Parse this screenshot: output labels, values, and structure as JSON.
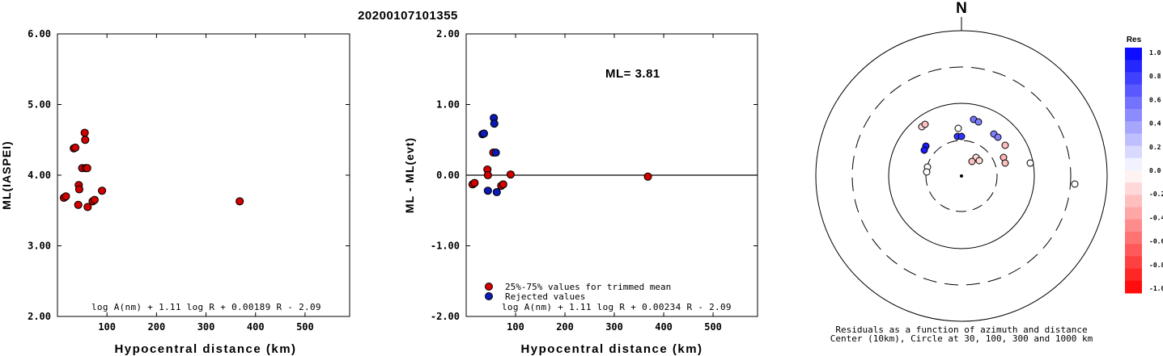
{
  "page": {
    "event_id": "20200107101355"
  },
  "chart_data": [
    {
      "type": "scatter",
      "id": "panel1",
      "ylabel": "ML(IASPEI)",
      "xlabel": "Hypocentral distance (km)",
      "xlim": [
        0,
        590
      ],
      "ylim": [
        2.0,
        6.0
      ],
      "x_ticks": [
        100,
        200,
        300,
        400,
        500
      ],
      "y_ticks": [
        2.0,
        3.0,
        4.0,
        5.0,
        6.0
      ],
      "y_tick_labels": [
        "2.00",
        "3.00",
        "4.00",
        "5.00",
        "6.00"
      ],
      "formula": "log A(nm) + 1.11 log R + 0.00189 R - 2.09",
      "series": [
        {
          "color": "#d40000",
          "points": [
            [
              13,
              3.68
            ],
            [
              17,
              3.7
            ],
            [
              33,
              4.38
            ],
            [
              36,
              4.39
            ],
            [
              42,
              3.58
            ],
            [
              43,
              3.86
            ],
            [
              44,
              3.8
            ],
            [
              50,
              4.1
            ],
            [
              55,
              4.6
            ],
            [
              56,
              4.5
            ],
            [
              57,
              4.1
            ],
            [
              60,
              4.1
            ],
            [
              61,
              3.55
            ],
            [
              71,
              3.63
            ],
            [
              75,
              3.65
            ],
            [
              90,
              3.78
            ],
            [
              368,
              3.63
            ]
          ]
        }
      ]
    },
    {
      "type": "scatter",
      "id": "panel2",
      "ylabel": "ML - ML(evt)",
      "xlabel": "Hypocentral distance (km)",
      "xlim": [
        0,
        590
      ],
      "ylim": [
        -2.0,
        2.0
      ],
      "x_ticks": [
        100,
        200,
        300,
        400,
        500
      ],
      "y_ticks": [
        -2.0,
        -1.0,
        0.0,
        1.0,
        2.0
      ],
      "y_tick_labels": [
        "-2.00",
        "-1.00",
        "0.00",
        "1.00",
        "2.00"
      ],
      "annotation": "ML= 3.81",
      "formula": "log A(nm) + 1.11 log R + 0.00234 R - 2.09",
      "legend": [
        {
          "label": "25%-75% values for trimmed mean",
          "color": "#d40000"
        },
        {
          "label": "Rejected values",
          "color": "#0a1ab8"
        }
      ],
      "series": [
        {
          "name": "25%-75% values for trimmed mean",
          "color": "#d40000",
          "points": [
            [
              13,
              -0.13
            ],
            [
              17,
              -0.11
            ],
            [
              43,
              0.08
            ],
            [
              44,
              0.0
            ],
            [
              55,
              0.32
            ],
            [
              71,
              -0.15
            ],
            [
              75,
              -0.13
            ],
            [
              90,
              0.01
            ],
            [
              368,
              -0.02
            ]
          ]
        },
        {
          "name": "Rejected values",
          "color": "#0a1ab8",
          "points": [
            [
              33,
              0.58
            ],
            [
              36,
              0.59
            ],
            [
              44,
              -0.22
            ],
            [
              56,
              0.81
            ],
            [
              57,
              0.73
            ],
            [
              60,
              0.32
            ],
            [
              62,
              -0.24
            ]
          ]
        }
      ]
    },
    {
      "type": "scatter",
      "id": "polar",
      "north_label": "N",
      "caption_line1": "Residuals as a function of azimuth and distance",
      "caption_line2": "Center (10km), Circle at 30, 100, 300 and 1000 km",
      "colorbar_title": "Res",
      "colorbar_ticks": [
        "1.0",
        "0.8",
        "0.6",
        "0.4",
        "0.2",
        "0.0",
        "-0.2",
        "-0.4",
        "-0.6",
        "-0.8",
        "-1.0"
      ],
      "stations": [
        {
          "dx": -49,
          "dy": -61,
          "res": -0.15
        },
        {
          "dx": -45,
          "dy": -64,
          "res": -0.25
        },
        {
          "dx": -4,
          "dy": -59,
          "res": 0.0
        },
        {
          "dx": 15,
          "dy": -70,
          "res": 0.55
        },
        {
          "dx": 21,
          "dy": -67,
          "res": 0.5
        },
        {
          "dx": -5,
          "dy": -49,
          "res": 0.8
        },
        {
          "dx": 0,
          "dy": -49,
          "res": 0.8
        },
        {
          "dx": 40,
          "dy": -52,
          "res": 0.5
        },
        {
          "dx": 45,
          "dy": -48,
          "res": 0.5
        },
        {
          "dx": 54,
          "dy": -38,
          "res": -0.25
        },
        {
          "dx": -44,
          "dy": -37,
          "res": 0.9
        },
        {
          "dx": -46,
          "dy": -32,
          "res": 0.9
        },
        {
          "dx": 18,
          "dy": -23,
          "res": -0.15
        },
        {
          "dx": 13,
          "dy": -18,
          "res": -0.25
        },
        {
          "dx": 22,
          "dy": -19,
          "res": -0.15
        },
        {
          "dx": 52,
          "dy": -23,
          "res": -0.3
        },
        {
          "dx": 54,
          "dy": -16,
          "res": -0.25
        },
        {
          "dx": 85,
          "dy": -16,
          "res": 0.0
        },
        {
          "dx": -42,
          "dy": -11,
          "res": 0.0
        },
        {
          "dx": -43,
          "dy": -5,
          "res": 0.0
        },
        {
          "dx": 140,
          "dy": 10,
          "res": 0.0
        }
      ]
    }
  ]
}
